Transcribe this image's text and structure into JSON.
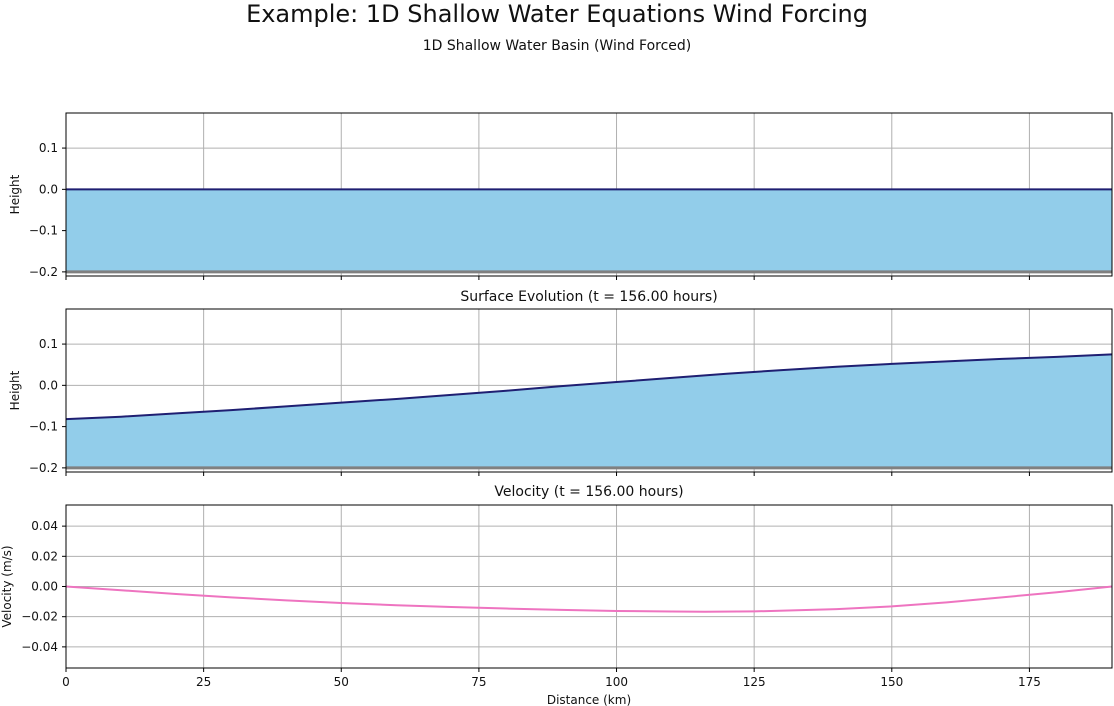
{
  "header": {
    "title": "Example: 1D Shallow Water Equations Wind Forcing",
    "subtitle": "1D Shallow Water Basin (Wind Forced)"
  },
  "colors": {
    "water_fill": "#92cdea",
    "surface_line": "#1f1f72",
    "bottom_line": "#808080",
    "velocity_line": "#ee74c0",
    "grid": "#b0b0b0"
  },
  "chart_data": [
    {
      "type": "area",
      "title": "",
      "xlabel": "",
      "ylabel": "Height",
      "xlim": [
        0,
        190
      ],
      "ylim": [
        -0.21,
        0.185
      ],
      "x_ticks": [
        0,
        25,
        50,
        75,
        100,
        125,
        150,
        175
      ],
      "y_ticks": [
        0.1,
        0.0,
        -0.1,
        -0.2
      ],
      "y_tick_labels": [
        "0.1",
        "0.0",
        "−0.1",
        "−0.2"
      ],
      "bottom": -0.2,
      "x": [
        0,
        190
      ],
      "surface": [
        0.0,
        0.0
      ]
    },
    {
      "type": "area",
      "title": "Surface Evolution (t = 156.00 hours)",
      "xlabel": "",
      "ylabel": "Height",
      "xlim": [
        0,
        190
      ],
      "ylim": [
        -0.21,
        0.185
      ],
      "x_ticks": [
        0,
        25,
        50,
        75,
        100,
        125,
        150,
        175
      ],
      "y_ticks": [
        0.1,
        0.0,
        -0.1,
        -0.2
      ],
      "y_tick_labels": [
        "0.1",
        "0.0",
        "−0.1",
        "−0.2"
      ],
      "bottom": -0.2,
      "x": [
        0,
        10,
        20,
        30,
        40,
        50,
        60,
        70,
        80,
        90,
        100,
        110,
        120,
        130,
        140,
        150,
        160,
        170,
        180,
        190
      ],
      "surface": [
        -0.082,
        -0.076,
        -0.068,
        -0.06,
        -0.051,
        -0.042,
        -0.033,
        -0.023,
        -0.013,
        -0.002,
        0.008,
        0.018,
        0.028,
        0.037,
        0.045,
        0.052,
        0.058,
        0.064,
        0.069,
        0.075
      ]
    },
    {
      "type": "line",
      "title": "Velocity (t = 156.00 hours)",
      "xlabel": "Distance (km)",
      "ylabel": "Velocity (m/s)",
      "xlim": [
        0,
        190
      ],
      "ylim": [
        -0.054,
        0.054
      ],
      "x_ticks": [
        0,
        25,
        50,
        75,
        100,
        125,
        150,
        175
      ],
      "x_tick_labels": [
        "0",
        "25",
        "50",
        "75",
        "100",
        "125",
        "150",
        "175"
      ],
      "y_ticks": [
        0.04,
        0.02,
        0.0,
        -0.02,
        -0.04
      ],
      "y_tick_labels": [
        "0.04",
        "0.02",
        "0.00",
        "−0.02",
        "−0.04"
      ],
      "x": [
        0,
        10,
        20,
        30,
        40,
        50,
        60,
        70,
        80,
        90,
        100,
        110,
        116,
        125,
        140,
        150,
        160,
        170,
        180,
        190
      ],
      "series": [
        {
          "name": "velocity",
          "values": [
            0.0,
            -0.0025,
            -0.005,
            -0.0072,
            -0.0092,
            -0.0109,
            -0.0124,
            -0.0136,
            -0.0146,
            -0.0155,
            -0.0162,
            -0.0166,
            -0.0167,
            -0.0165,
            -0.015,
            -0.0132,
            -0.0105,
            -0.0072,
            -0.0038,
            0.0
          ]
        }
      ]
    }
  ]
}
